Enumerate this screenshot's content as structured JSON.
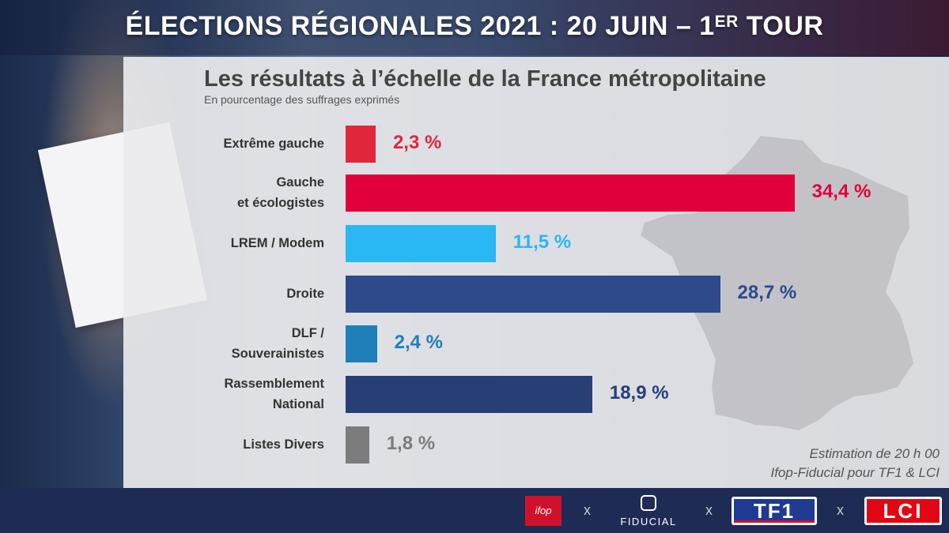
{
  "header": {
    "title_main": "ÉLECTIONS RÉGIONALES 2021 : 20 JUIN – 1",
    "title_sup": "ER",
    "title_end": " TOUR"
  },
  "chart_data": {
    "type": "bar",
    "orientation": "horizontal",
    "title": "Les résultats à l’échelle de la France métropolitaine",
    "subtitle": "En pourcentage des suffrages exprimés",
    "xlim": [
      0,
      37
    ],
    "categories": [
      "Extrême gauche",
      "Gauche\net écologistes",
      "LREM / Modem",
      "Droite",
      "DLF /\nSouverainistes",
      "Rassemblement\nNational",
      "Listes Divers"
    ],
    "values": [
      2.3,
      34.4,
      11.5,
      28.7,
      2.4,
      18.9,
      1.8
    ],
    "value_labels": [
      "2,3 %",
      "34,4 %",
      "11,5 %",
      "28,7 %",
      "2,4 %",
      "18,9 %",
      "1,8 %"
    ],
    "colors": [
      "#e0273c",
      "#e2003c",
      "#2ab7f4",
      "#2e4a8b",
      "#1f7fb8",
      "#273f75",
      "#7c7c7c"
    ]
  },
  "source": {
    "line1": "Estimation de 20 h 00",
    "line2": "Ifop-Fiducial pour TF1 & LCI"
  },
  "logos": {
    "ifop": "ifop",
    "separator": "x",
    "fiducial": "FIDUCIAL",
    "tf1": "TF1",
    "lci": "LCI"
  }
}
